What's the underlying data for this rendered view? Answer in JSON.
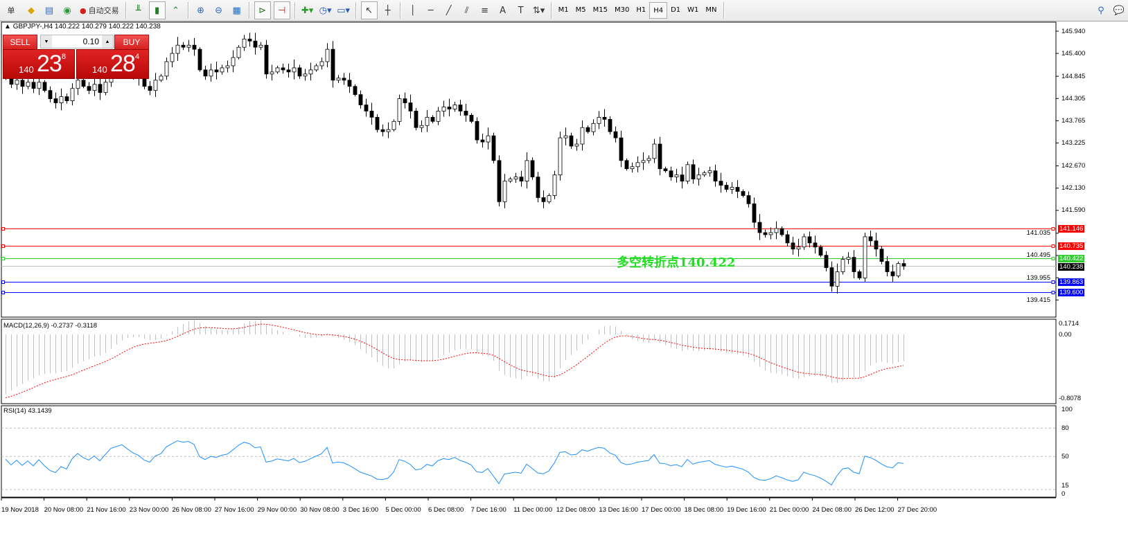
{
  "toolbar": {
    "menu_cut": "单",
    "autotrade_label": "自动交易",
    "timeframes": [
      "M1",
      "M5",
      "M15",
      "M30",
      "H1",
      "H4",
      "D1",
      "W1",
      "MN"
    ],
    "active_timeframe": "H4"
  },
  "chart": {
    "symbol_info": "GBPJPY-,H4  140.222 140.279 140.222 140.238",
    "trade_panel": {
      "sell_label": "SELL",
      "buy_label": "BUY",
      "lot": "0.10",
      "sell_price": {
        "prefix": "140",
        "big": "23",
        "sup": "8"
      },
      "buy_price": {
        "prefix": "140",
        "big": "28",
        "sup": "4"
      }
    },
    "annotation": "多空转折点140.422",
    "annotation_color": "#22dd22",
    "macd_label": "MACD(12,26,9) -0.2737 -0.3118",
    "rsi_label": "RSI(14) 43.1439",
    "date_labels": [
      "19 Nov 2018",
      "20 Nov 08:00",
      "21 Nov 16:00",
      "23 Nov 00:00",
      "26 Nov 08:00",
      "27 Nov 16:00",
      "29 Nov 00:00",
      "30 Nov 08:00",
      "3 Dec 16:00",
      "5 Dec 00:00",
      "6 Dec 08:00",
      "7 Dec 16:00",
      "11 Dec 00:00",
      "12 Dec 08:00",
      "13 Dec 16:00",
      "17 Dec 00:00",
      "18 Dec 08:00",
      "19 Dec 16:00",
      "21 Dec 00:00",
      "24 Dec 08:00",
      "26 Dec 12:00",
      "27 Dec 20:00"
    ]
  },
  "chart_data": {
    "type": "candlestick",
    "price_ticks": [
      "145.940",
      "145.400",
      "144.845",
      "144.305",
      "143.765",
      "143.225",
      "142.670",
      "142.130",
      "141.590",
      "141.035",
      "140.495",
      "139.955",
      "139.415"
    ],
    "ylim": [
      139.0,
      146.16
    ],
    "closes": [
      144.8,
      144.65,
      144.75,
      144.6,
      144.7,
      144.55,
      144.7,
      144.5,
      144.3,
      144.2,
      144.35,
      144.25,
      144.55,
      144.75,
      144.6,
      144.5,
      144.65,
      144.45,
      144.7,
      145.0,
      145.1,
      145.2,
      145.05,
      144.9,
      144.8,
      144.6,
      144.5,
      144.75,
      144.85,
      145.2,
      145.4,
      145.6,
      145.55,
      145.6,
      145.5,
      145.0,
      144.85,
      145.0,
      144.95,
      145.05,
      145.1,
      145.3,
      145.55,
      145.75,
      145.7,
      145.55,
      145.6,
      144.9,
      144.95,
      145.05,
      145.0,
      144.95,
      145.05,
      144.85,
      144.9,
      145.0,
      145.1,
      145.2,
      145.5,
      144.75,
      144.8,
      144.75,
      144.6,
      144.4,
      144.15,
      144.0,
      143.85,
      143.55,
      143.5,
      143.55,
      143.75,
      144.3,
      144.2,
      144.0,
      143.6,
      143.65,
      143.85,
      143.75,
      144.0,
      144.1,
      144.05,
      144.15,
      144.0,
      143.9,
      143.75,
      143.3,
      143.25,
      143.4,
      142.8,
      141.8,
      142.3,
      142.35,
      142.4,
      142.3,
      142.8,
      142.4,
      141.9,
      141.8,
      141.95,
      142.45,
      143.35,
      143.4,
      143.15,
      143.2,
      143.6,
      143.5,
      143.7,
      143.85,
      143.8,
      143.5,
      143.35,
      142.8,
      142.6,
      142.65,
      142.75,
      142.8,
      142.85,
      143.2,
      142.6,
      142.55,
      142.4,
      142.45,
      142.3,
      142.7,
      142.35,
      142.45,
      142.5,
      142.55,
      142.3,
      142.2,
      142.1,
      142.15,
      142.05,
      141.95,
      141.75,
      141.3,
      141.05,
      141.0,
      141.05,
      141.15,
      141.0,
      140.8,
      140.65,
      140.7,
      140.95,
      140.8,
      140.7,
      140.5,
      140.2,
      139.75,
      140.1,
      140.4,
      140.45,
      140.1,
      139.95,
      140.95,
      140.85,
      140.65,
      140.35,
      140.1,
      140.0,
      140.3,
      140.238
    ],
    "hlines": [
      {
        "price": "141.146",
        "color": "#ff0000"
      },
      {
        "price": "140.735",
        "color": "#ff0000"
      },
      {
        "price": "140.422",
        "color": "#33cc33"
      },
      {
        "price": "140.238",
        "color": "#c0c0c0",
        "label_bg": "#000000"
      },
      {
        "price": "139.863",
        "color": "#0000ff"
      },
      {
        "price": "139.600",
        "color": "#0000ff"
      }
    ],
    "macd": {
      "params": [
        12,
        26,
        9
      ],
      "ticks": [
        "0.1714",
        "0.00",
        "-0.8078"
      ],
      "ylim": [
        -0.8078,
        0.1714
      ],
      "hist_color": "#c0c0c0",
      "signal_color": "#ff0000"
    },
    "rsi": {
      "period": 14,
      "ticks": [
        "100",
        "80",
        "50",
        "15",
        "0"
      ],
      "levels": [
        80,
        50,
        15
      ],
      "color": "#1e90ff"
    }
  }
}
